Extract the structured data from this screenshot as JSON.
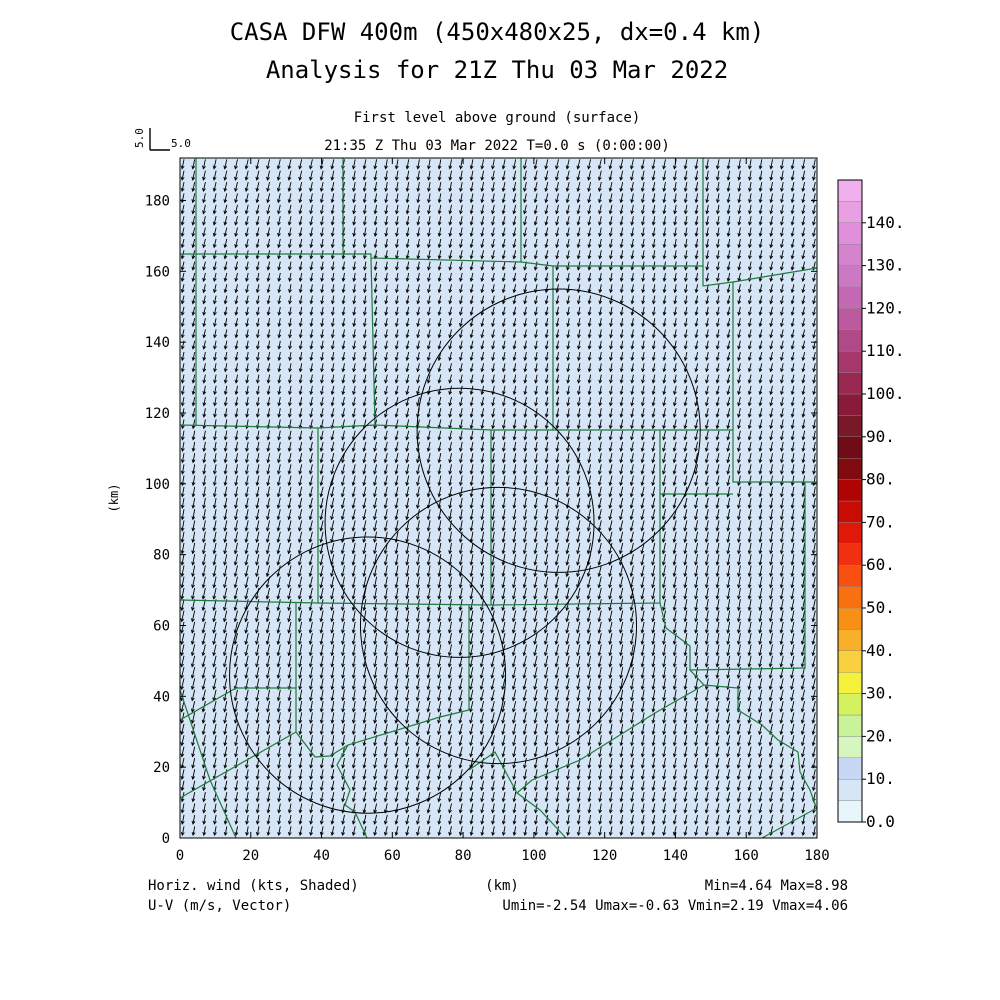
{
  "title_line1": "CASA DFW 400m (450x480x25, dx=0.4 km)",
  "title_line2": "Analysis for 21Z Thu 03 Mar 2022",
  "subtitle_level": "First level above ground (surface)",
  "subtitle_time": "21:35 Z Thu 03 Mar 2022    T=0.0 s (0:00:00)",
  "ref_vector": {
    "label_x": "5.0",
    "label_y": "5.0"
  },
  "axes": {
    "x_label": "(km)",
    "y_label": "(km)",
    "x_ticks": [
      "0",
      "20",
      "40",
      "60",
      "80",
      "100",
      "120",
      "140",
      "160",
      "180"
    ],
    "y_ticks": [
      "0",
      "20",
      "40",
      "60",
      "80",
      "100",
      "120",
      "140",
      "160",
      "180"
    ],
    "x_range": [
      0,
      180
    ],
    "y_range": [
      0,
      192
    ]
  },
  "footer": {
    "left1": "Horiz. wind (kts, Shaded)",
    "left2": "U-V (m/s, Vector)",
    "right1": "Min=4.64 Max=8.98",
    "right2": "Umin=-2.54 Umax=-0.63 Vmin=2.19 Vmax=4.06",
    "center": "(km)"
  },
  "colorbar": {
    "labels": [
      "0.0",
      "10.",
      "20.",
      "30.",
      "40.",
      "50.",
      "60.",
      "70.",
      "80.",
      "90.",
      "100.",
      "110.",
      "120.",
      "130.",
      "140."
    ],
    "colors": [
      "#e8f6fc",
      "#d6e6f6",
      "#c8d8f4",
      "#d6f6c0",
      "#caf29a",
      "#d4f260",
      "#f4f03c",
      "#f8d040",
      "#f8b028",
      "#f89018",
      "#f87010",
      "#f85010",
      "#f03010",
      "#e01808",
      "#c80c04",
      "#b00404",
      "#800c10",
      "#700c18",
      "#781828",
      "#8a1a3a",
      "#982850",
      "#a8386c",
      "#b04a86",
      "#bc5aa0",
      "#c46ab4",
      "#cc78c2",
      "#d484cc",
      "#e090da",
      "#e8a0e2",
      "#f0b0ec"
    ]
  },
  "chart_data": {
    "type": "heatmap",
    "field": "Horizontal wind vectors (U-V) over shaded wind speed",
    "field_min": 4.64,
    "field_max": 8.98,
    "u_range": [
      -2.54,
      -0.63
    ],
    "v_range": [
      2.19,
      4.06
    ],
    "radar_rings_km": [
      {
        "cx": 53,
        "cy": 46,
        "r": 39
      },
      {
        "cx": 79,
        "cy": 89,
        "r": 38
      },
      {
        "cx": 107,
        "cy": 115,
        "r": 40
      },
      {
        "cx": 90,
        "cy": 60,
        "r": 39
      }
    ]
  },
  "colors": {
    "background_shade": "#d6e6f6",
    "county_lines": "#1f7a3c",
    "ring_lines": "#000000",
    "vectors": "#000000"
  }
}
